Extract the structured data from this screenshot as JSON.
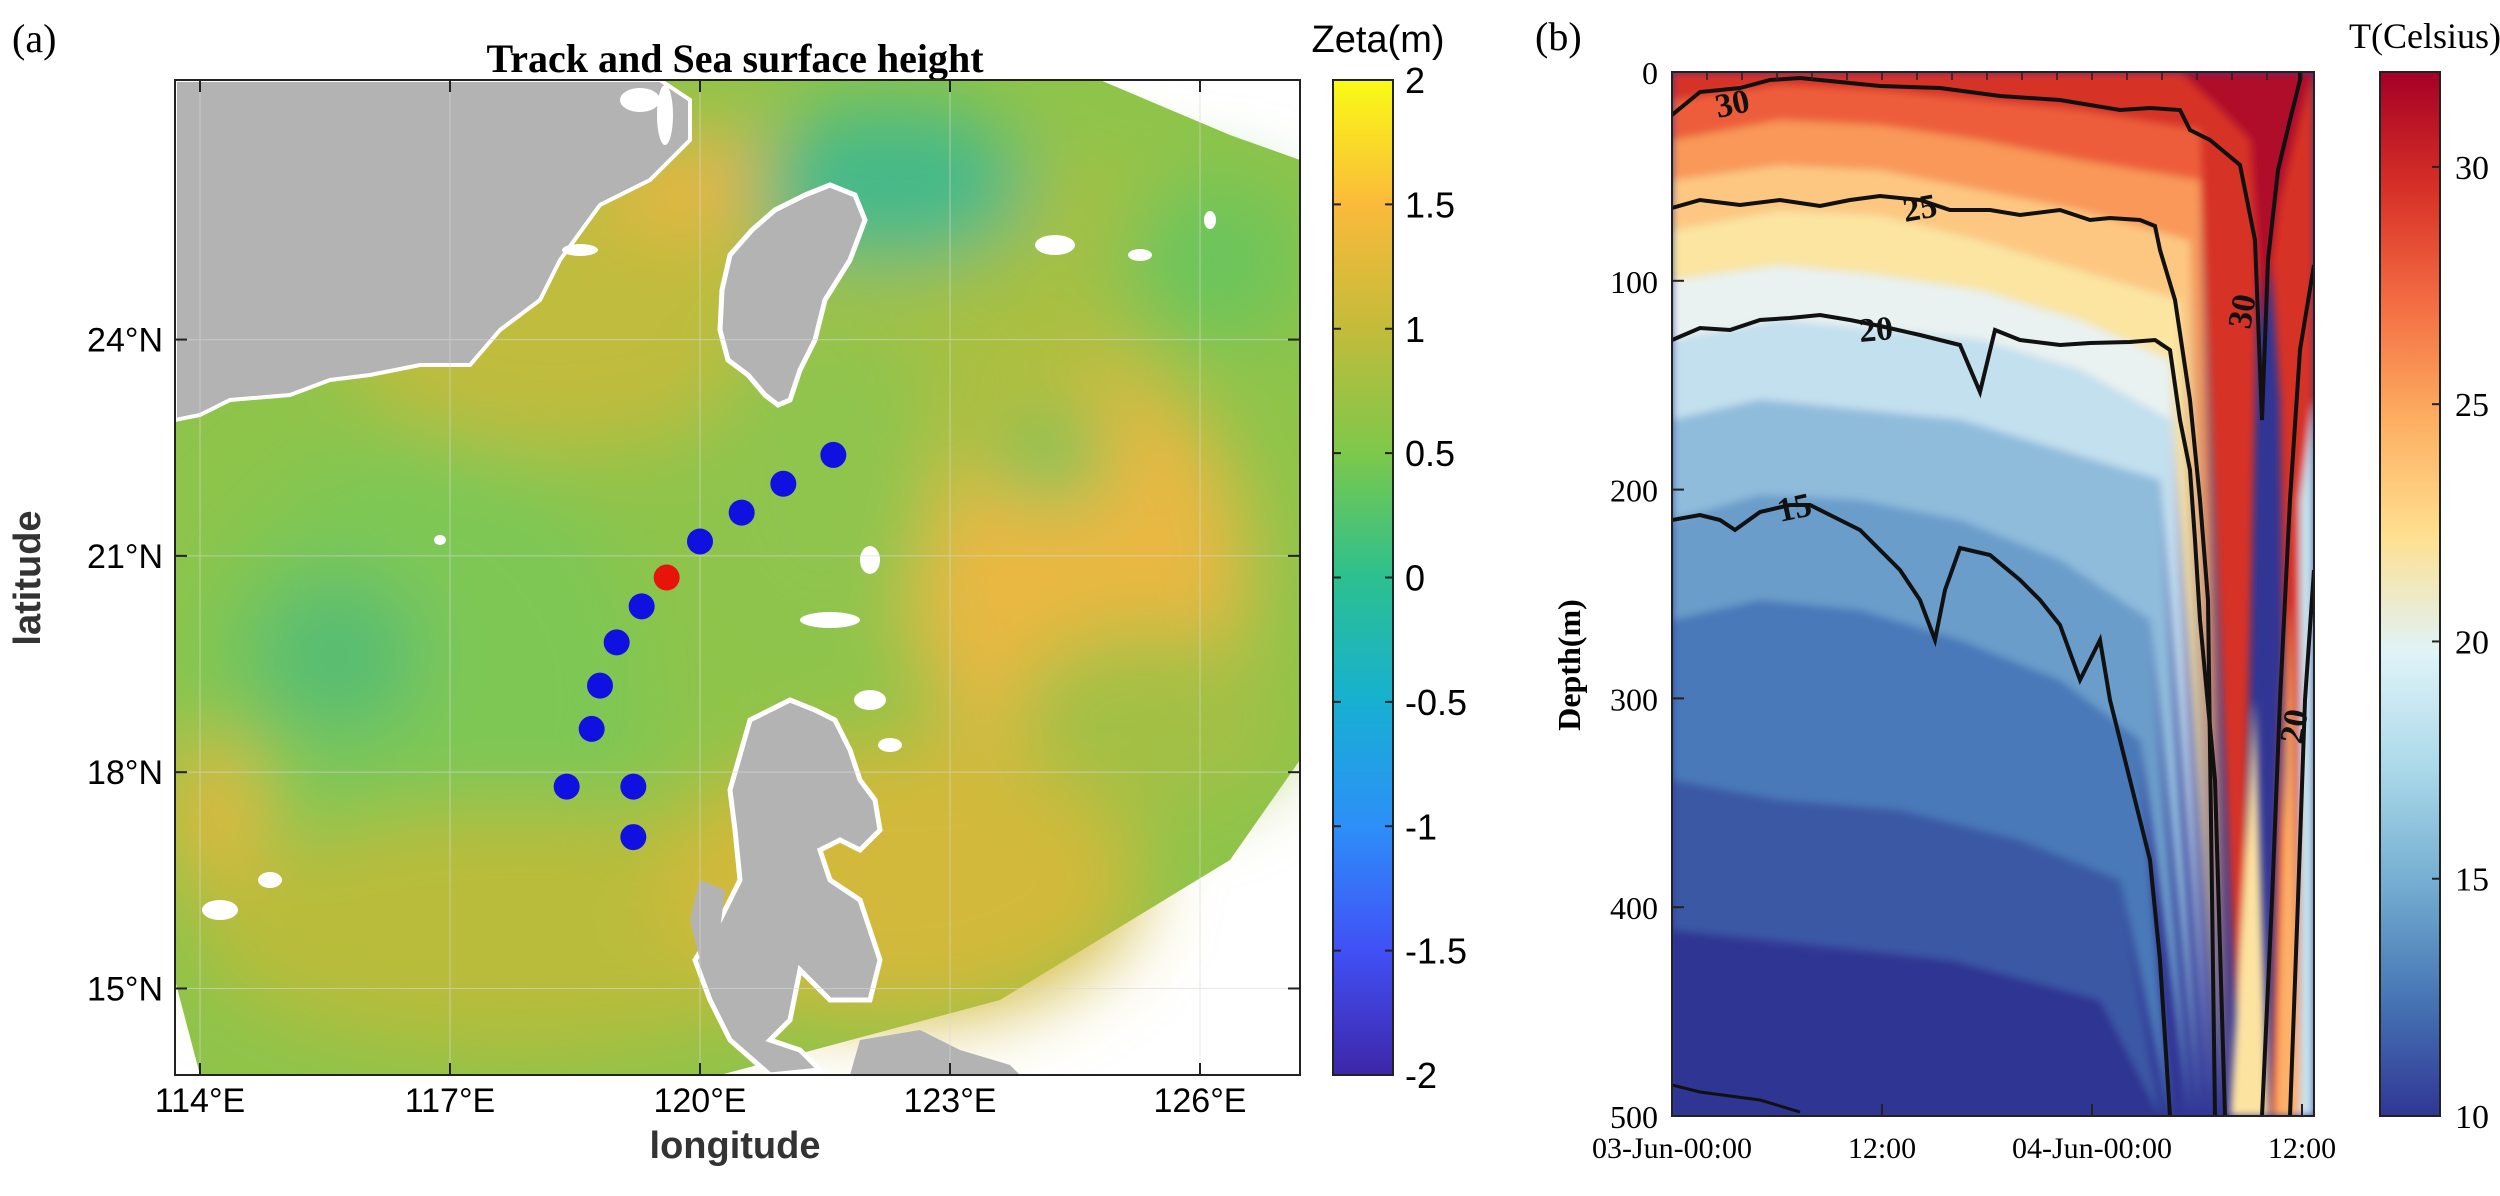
{
  "panels": {
    "a": {
      "label": "(a)",
      "title": "Track and Sea surface height",
      "xlabel": "longitude",
      "ylabel": "latitude",
      "colorbar_title": "Zeta(m)"
    },
    "b": {
      "label": "(b)",
      "ylabel": "Depth(m)",
      "colorbar_title": "T(Celsius)"
    }
  },
  "chart_data": [
    {
      "type": "heatmap",
      "panel": "a",
      "title": "Track and Sea surface height",
      "xlabel": "longitude",
      "ylabel": "latitude",
      "xlim": [
        113.7,
        127.2
      ],
      "ylim": [
        13.8,
        27.6
      ],
      "x_ticks": [
        114,
        117,
        120,
        123,
        126
      ],
      "x_tick_labels": [
        "114°E",
        "117°E",
        "120°E",
        "123°E",
        "126°E"
      ],
      "y_ticks": [
        15,
        18,
        21,
        24
      ],
      "y_tick_labels": [
        "15°N",
        "18°N",
        "21°N",
        "24°N"
      ],
      "colorbar": {
        "label": "Zeta(m)",
        "range": [
          -2,
          2
        ],
        "ticks": [
          2,
          1.5,
          1,
          0.5,
          0,
          -0.5,
          -1,
          -1.5,
          -2
        ],
        "tick_labels": [
          "2",
          "1.5",
          "1",
          "0.5",
          "0",
          "-0.5",
          "-1",
          "-1.5",
          "-2"
        ],
        "colormap": [
          "#3e26a8",
          "#4150f6",
          "#2d8ff8",
          "#17b0d2",
          "#2cc08f",
          "#7dc84b",
          "#c4bb3a",
          "#fbba3b",
          "#f9fb15"
        ]
      },
      "track_points": [
        {
          "lon": 118.4,
          "lat": 17.8
        },
        {
          "lon": 119.2,
          "lat": 17.8
        },
        {
          "lon": 119.2,
          "lat": 17.1
        },
        {
          "lon": 118.7,
          "lat": 18.6
        },
        {
          "lon": 118.8,
          "lat": 19.2
        },
        {
          "lon": 119.0,
          "lat": 19.8
        },
        {
          "lon": 119.3,
          "lat": 20.3
        },
        {
          "lon": 120.0,
          "lat": 21.2
        },
        {
          "lon": 120.5,
          "lat": 21.6
        },
        {
          "lon": 121.0,
          "lat": 22.0
        },
        {
          "lon": 121.6,
          "lat": 22.4
        }
      ],
      "highlight_point": {
        "lon": 119.6,
        "lat": 20.7
      },
      "track_color": "#1010e0",
      "highlight_color": "#e8140a",
      "land_color": "#b3b3b3"
    },
    {
      "type": "heatmap",
      "panel": "b",
      "ylabel": "Depth(m)",
      "xlabel": "",
      "x_tick_labels": [
        "03-Jun-00:00",
        "12:00",
        "04-Jun-00:00",
        "12:00"
      ],
      "x_tick_hours": [
        0,
        12,
        24,
        36
      ],
      "xlim_hours": [
        0,
        36
      ],
      "y_ticks": [
        0,
        100,
        200,
        300,
        400,
        500
      ],
      "y_tick_labels": [
        "0",
        "100",
        "200",
        "300",
        "400",
        "500"
      ],
      "ylim": [
        0,
        500
      ],
      "y_reversed": true,
      "colorbar": {
        "label": "T(Celsius)",
        "range": [
          10,
          32
        ],
        "ticks": [
          30,
          25,
          20,
          15,
          10
        ],
        "tick_labels": [
          "30",
          "25",
          "20",
          "15",
          "10"
        ],
        "colormap": [
          "#313695",
          "#4575b4",
          "#74add1",
          "#abd9e9",
          "#e0f3f8",
          "#fee090",
          "#fdae61",
          "#f46d43",
          "#d73027",
          "#a50026"
        ]
      },
      "contours": [
        {
          "level": 30,
          "label": "30"
        },
        {
          "level": 25,
          "label": "25"
        },
        {
          "level": 20,
          "label": "20"
        },
        {
          "level": 15,
          "label": "15"
        }
      ]
    }
  ]
}
